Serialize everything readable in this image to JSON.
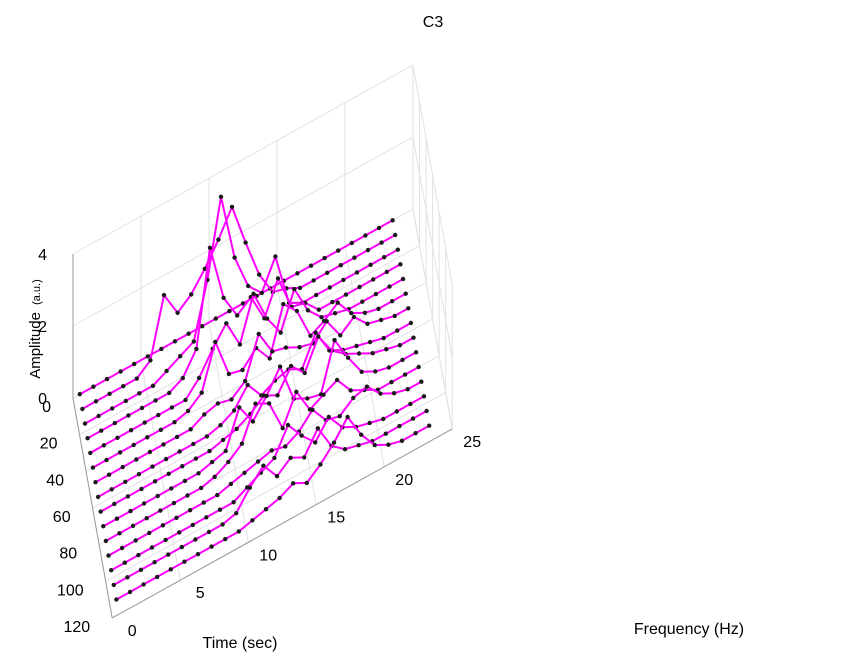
{
  "chart_data": {
    "type": "line",
    "title": "C3",
    "xlabel": "Time (sec)",
    "ylabel": "Frequency (Hz)",
    "zlabel_main": "Amplitude",
    "zlabel_unit": "(a.u.)",
    "xlim": [
      0,
      120
    ],
    "ylim": [
      0,
      25
    ],
    "zlim": [
      0,
      4
    ],
    "xticks": [
      "0",
      "20",
      "40",
      "60",
      "80",
      "100",
      "120"
    ],
    "yticks": [
      "0",
      "5",
      "10",
      "15",
      "20",
      "25"
    ],
    "zticks": [
      "0",
      "2",
      "4"
    ],
    "grid": true,
    "line_color": "#ff00ff",
    "marker_color": "#1a1a1a",
    "frequencies": [
      0.5,
      1.5,
      2.5,
      3.5,
      4.5,
      5.5,
      6.5,
      7.5,
      8.5,
      9.5,
      10.5,
      11.5,
      12.5,
      13.5,
      14.5,
      15.5,
      16.5,
      17.5,
      18.5,
      19.5,
      20.5,
      21.5,
      22.5,
      23.5
    ],
    "series": [
      {
        "time": 0,
        "values": [
          0,
          0,
          0,
          0,
          0,
          0,
          0,
          0,
          0,
          0,
          0,
          0,
          0,
          0,
          0,
          0,
          0,
          0,
          0,
          0,
          0,
          0,
          0,
          0
        ]
      },
      {
        "time": 8,
        "values": [
          0,
          0,
          0,
          0,
          0,
          0.3,
          1.9,
          1.2,
          1.5,
          2.0,
          2.6,
          3.3,
          2.1,
          1.0,
          0.3,
          0.2,
          0,
          0,
          0,
          0,
          0,
          0,
          0,
          0
        ]
      },
      {
        "time": 16,
        "values": [
          0,
          0,
          0,
          0,
          0,
          0,
          0.2,
          0.4,
          0.6,
          2.1,
          4.2,
          2.3,
          1.3,
          0.9,
          1.7,
          0.2,
          0,
          0,
          0,
          0,
          0,
          0,
          0,
          0
        ]
      },
      {
        "time": 24,
        "values": [
          0,
          0,
          0,
          0,
          0,
          0,
          0,
          0.2,
          0.8,
          3.4,
          1.8,
          1.1,
          1.4,
          0.6,
          1.5,
          0.5,
          0.4,
          0,
          0,
          0,
          0,
          0,
          0,
          0
        ]
      },
      {
        "time": 32,
        "values": [
          0,
          0,
          0,
          0,
          0,
          0,
          0,
          0,
          0.4,
          1.0,
          1.5,
          0.7,
          1.9,
          1.0,
          0.4,
          1.4,
          0.6,
          0.2,
          0.1,
          0,
          0,
          0,
          0,
          0
        ]
      },
      {
        "time": 40,
        "values": [
          0,
          0,
          0,
          0,
          0,
          0,
          0,
          0.1,
          0.4,
          1.6,
          0.5,
          0.4,
          0.8,
          0.3,
          1.6,
          1.2,
          0.3,
          0.5,
          0.8,
          0.3,
          0.1,
          0,
          0,
          0
        ]
      },
      {
        "time": 48,
        "values": [
          0,
          0,
          0,
          0,
          0,
          0,
          0,
          0,
          0.2,
          0.3,
          0.2,
          0.5,
          1.6,
          0.9,
          0.8,
          0.6,
          0.5,
          0.9,
          0.3,
          0.6,
          0.2,
          0.1,
          0,
          0
        ]
      },
      {
        "time": 56,
        "values": [
          0,
          0,
          0,
          0,
          0,
          0,
          0,
          0,
          0,
          0.1,
          0.3,
          0.8,
          0.3,
          0.5,
          0.6,
          0.4,
          1.2,
          0.5,
          0.3,
          0.2,
          0.1,
          0,
          0,
          0
        ]
      },
      {
        "time": 64,
        "values": [
          0,
          0,
          0,
          0,
          0,
          0,
          0,
          0,
          0,
          0.1,
          0.2,
          0.4,
          0.7,
          0.5,
          1.1,
          0.7,
          1.5,
          0.9,
          0.6,
          0.4,
          0.2,
          0.1,
          0,
          0
        ]
      },
      {
        "time": 72,
        "values": [
          0,
          0,
          0,
          0,
          0,
          0,
          0,
          0,
          0.1,
          0.2,
          1.2,
          0.6,
          1.1,
          1.7,
          0.6,
          0.4,
          0.3,
          1.6,
          0.9,
          0.3,
          0.1,
          0,
          0,
          0
        ]
      },
      {
        "time": 80,
        "values": [
          0,
          0,
          0,
          0,
          0,
          0,
          0,
          0,
          0.1,
          0.3,
          0.6,
          1.5,
          1.3,
          0.4,
          1.2,
          0.5,
          0.7,
          0.9,
          0.4,
          0.2,
          0,
          0,
          0,
          0
        ]
      },
      {
        "time": 88,
        "values": [
          0,
          0,
          0,
          0,
          0,
          0,
          0,
          0,
          0,
          0.1,
          0.2,
          0.3,
          0.4,
          0.3,
          0.5,
          0.9,
          0.4,
          0.3,
          0.6,
          0.7,
          0.3,
          0.1,
          0,
          0
        ]
      },
      {
        "time": 96,
        "values": [
          0,
          0,
          0,
          0,
          0,
          0,
          0,
          0,
          0,
          0,
          0.2,
          0.4,
          0.6,
          1.3,
          0.8,
          0.4,
          0.9,
          0.4,
          0.2,
          0.1,
          0,
          0,
          0,
          0
        ]
      },
      {
        "time": 104,
        "values": [
          0,
          0,
          0,
          0,
          0,
          0,
          0,
          0,
          0,
          0.1,
          0.6,
          1.0,
          0.5,
          0.8,
          0.6,
          1.2,
          0.5,
          0.2,
          0.1,
          0,
          0,
          0,
          0,
          0
        ]
      },
      {
        "time": 112,
        "values": [
          0,
          0,
          0,
          0,
          0,
          0,
          0,
          0,
          0,
          0,
          0.1,
          0.2,
          0.3,
          0.5,
          0.3,
          0.6,
          1.0,
          1.5,
          0.8,
          0.3,
          0.1,
          0,
          0,
          0
        ]
      }
    ]
  }
}
